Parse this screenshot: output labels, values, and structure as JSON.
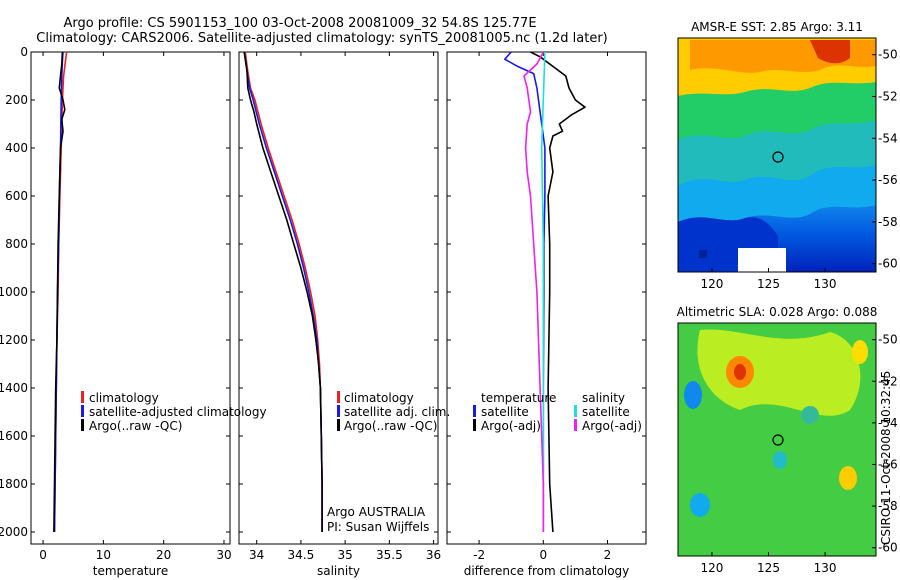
{
  "header": {
    "line1": "Argo profile: CS 5901153_100 03-Oct-2008 20081009_32 54.8S 125.77E",
    "line2": "Climatology: CARS2006. Satellite-adjusted climatology: synTS_20081005.nc (1.2d later)"
  },
  "credit": "CSIRO 11-Oct-2008 10:32:45",
  "colors": {
    "climatology": "#ee2222",
    "satellite": "#1a1ae6",
    "argo": "#000000",
    "cyan": "#22dddd",
    "magenta": "#ee22ee",
    "axis": "#000000"
  },
  "chart_data": [
    {
      "type": "line",
      "xlabel": "temperature",
      "ylabel": "",
      "xlim": [
        -2,
        31
      ],
      "ylim": [
        2050,
        0
      ],
      "xticks": [
        0,
        10,
        20,
        30
      ],
      "yticks": [
        0,
        200,
        400,
        600,
        800,
        1000,
        1200,
        1400,
        1600,
        1800,
        2000
      ],
      "legend": {
        "placement": "lower-middle",
        "entries": [
          "climatology",
          "satellite-adjusted climatology",
          "Argo(..raw -QC)"
        ]
      },
      "series": [
        {
          "name": "climatology",
          "color_key": "climatology",
          "points": [
            [
              3.9,
              0
            ],
            [
              3.7,
              40
            ],
            [
              3.4,
              100
            ],
            [
              3.2,
              200
            ],
            [
              3.0,
              400
            ],
            [
              2.8,
              600
            ],
            [
              2.6,
              800
            ],
            [
              2.5,
              1000
            ],
            [
              2.3,
              1200
            ],
            [
              2.2,
              1400
            ],
            [
              2.1,
              1600
            ],
            [
              2.0,
              1800
            ],
            [
              1.9,
              2000
            ]
          ]
        },
        {
          "name": "satellite-adjusted climatology",
          "color_key": "satellite",
          "points": [
            [
              3.3,
              0
            ],
            [
              3.2,
              40
            ],
            [
              3.1,
              100
            ],
            [
              3.0,
              200
            ],
            [
              2.9,
              400
            ],
            [
              2.7,
              600
            ],
            [
              2.6,
              800
            ],
            [
              2.4,
              1000
            ],
            [
              2.3,
              1200
            ],
            [
              2.2,
              1400
            ],
            [
              2.1,
              1600
            ],
            [
              2.0,
              1800
            ],
            [
              1.9,
              2000
            ]
          ]
        },
        {
          "name": "Argo(..raw -QC)",
          "color_key": "argo",
          "points": [
            [
              3.2,
              0
            ],
            [
              3.1,
              50
            ],
            [
              2.9,
              100
            ],
            [
              2.7,
              150
            ],
            [
              3.3,
              200
            ],
            [
              3.6,
              240
            ],
            [
              3.1,
              280
            ],
            [
              3.3,
              330
            ],
            [
              2.9,
              400
            ],
            [
              2.7,
              600
            ],
            [
              2.5,
              800
            ],
            [
              2.4,
              1000
            ],
            [
              2.3,
              1200
            ],
            [
              2.1,
              1400
            ],
            [
              2.0,
              1600
            ],
            [
              1.9,
              1800
            ],
            [
              1.8,
              2000
            ]
          ]
        }
      ]
    },
    {
      "type": "line",
      "xlabel": "salinity",
      "ylabel": "",
      "xlim": [
        33.8,
        36.05
      ],
      "ylim": [
        2050,
        0
      ],
      "xticks": [
        34,
        34.5,
        35,
        35.5,
        36
      ],
      "xticklabels": [
        "34",
        "34.5",
        "35",
        "35.5",
        "36"
      ],
      "legend": {
        "placement": "lower-right",
        "entries": [
          "climatology",
          "satellite adj. clim.",
          "Argo(..raw -QC)"
        ]
      },
      "annotation": [
        "Argo AUSTRALIA",
        "PI: Susan Wijffels"
      ],
      "series": [
        {
          "name": "climatology",
          "color_key": "climatology",
          "points": [
            [
              33.87,
              0
            ],
            [
              33.9,
              80
            ],
            [
              33.93,
              150
            ],
            [
              33.98,
              200
            ],
            [
              34.05,
              300
            ],
            [
              34.13,
              400
            ],
            [
              34.22,
              500
            ],
            [
              34.31,
              600
            ],
            [
              34.4,
              700
            ],
            [
              34.48,
              800
            ],
            [
              34.55,
              900
            ],
            [
              34.61,
              1000
            ],
            [
              34.66,
              1100
            ],
            [
              34.69,
              1200
            ],
            [
              34.71,
              1300
            ],
            [
              34.72,
              1400
            ],
            [
              34.73,
              1600
            ],
            [
              34.74,
              1800
            ],
            [
              34.74,
              2000
            ]
          ]
        },
        {
          "name": "satellite adj. clim.",
          "color_key": "satellite",
          "points": [
            [
              33.86,
              0
            ],
            [
              33.89,
              80
            ],
            [
              33.92,
              150
            ],
            [
              33.96,
              200
            ],
            [
              34.03,
              300
            ],
            [
              34.11,
              400
            ],
            [
              34.2,
              500
            ],
            [
              34.29,
              600
            ],
            [
              34.38,
              700
            ],
            [
              34.46,
              800
            ],
            [
              34.53,
              900
            ],
            [
              34.59,
              1000
            ],
            [
              34.64,
              1100
            ],
            [
              34.68,
              1200
            ],
            [
              34.7,
              1300
            ],
            [
              34.72,
              1400
            ],
            [
              34.73,
              1600
            ],
            [
              34.74,
              1800
            ],
            [
              34.74,
              2000
            ]
          ]
        },
        {
          "name": "Argo(..raw -QC)",
          "color_key": "argo",
          "points": [
            [
              33.86,
              0
            ],
            [
              33.89,
              80
            ],
            [
              33.9,
              150
            ],
            [
              33.93,
              200
            ],
            [
              33.97,
              250
            ],
            [
              34.0,
              300
            ],
            [
              34.07,
              400
            ],
            [
              34.16,
              500
            ],
            [
              34.25,
              600
            ],
            [
              34.34,
              700
            ],
            [
              34.42,
              800
            ],
            [
              34.5,
              900
            ],
            [
              34.57,
              1000
            ],
            [
              34.63,
              1100
            ],
            [
              34.67,
              1200
            ],
            [
              34.7,
              1300
            ],
            [
              34.72,
              1400
            ],
            [
              34.73,
              1600
            ],
            [
              34.74,
              1800
            ],
            [
              34.74,
              2000
            ]
          ]
        }
      ]
    },
    {
      "type": "line",
      "xlabel": "difference from climatology",
      "ylabel": "",
      "xlim": [
        -3,
        3.2
      ],
      "ylim": [
        2050,
        0
      ],
      "xticks": [
        -2,
        0,
        2
      ],
      "legend": {
        "placement": "lower-middle",
        "temperature_header": "temperature",
        "salinity_header": "salinity",
        "temperature_entries": [
          "satellite",
          "Argo(-adj)"
        ],
        "salinity_entries": [
          "satellite",
          "Argo(-adj)"
        ]
      },
      "series": [
        {
          "name": "temperature satellite",
          "color_key": "satellite",
          "points": [
            [
              -1.0,
              0
            ],
            [
              -1.2,
              30
            ],
            [
              -0.8,
              60
            ],
            [
              -0.3,
              90
            ],
            [
              -0.2,
              150
            ],
            [
              -0.1,
              250
            ],
            [
              0.05,
              400
            ],
            [
              0.05,
              600
            ],
            [
              0.02,
              800
            ],
            [
              0.02,
              1000
            ],
            [
              0.0,
              1400
            ],
            [
              0.0,
              2000
            ]
          ]
        },
        {
          "name": "temperature Argo(-adj)",
          "color_key": "argo",
          "points": [
            [
              -0.4,
              0
            ],
            [
              -0.1,
              20
            ],
            [
              0.3,
              60
            ],
            [
              0.7,
              100
            ],
            [
              0.8,
              150
            ],
            [
              1.0,
              200
            ],
            [
              1.3,
              230
            ],
            [
              0.9,
              260
            ],
            [
              0.5,
              300
            ],
            [
              0.6,
              330
            ],
            [
              0.3,
              350
            ],
            [
              0.2,
              400
            ],
            [
              0.3,
              500
            ],
            [
              0.15,
              600
            ],
            [
              0.2,
              800
            ],
            [
              0.2,
              1000
            ],
            [
              0.15,
              1400
            ],
            [
              0.2,
              1800
            ],
            [
              0.3,
              2000
            ]
          ]
        },
        {
          "name": "salinity satellite",
          "color_key": "cyan",
          "points": [
            [
              0.05,
              0
            ],
            [
              0.0,
              200
            ],
            [
              -0.05,
              400
            ],
            [
              0.0,
              800
            ],
            [
              0.0,
              1400
            ],
            [
              0.0,
              2000
            ]
          ]
        },
        {
          "name": "salinity Argo(-adj)",
          "color_key": "magenta",
          "points": [
            [
              0.0,
              0
            ],
            [
              -0.2,
              50
            ],
            [
              -0.6,
              100
            ],
            [
              -0.5,
              150
            ],
            [
              -0.4,
              250
            ],
            [
              -0.5,
              300
            ],
            [
              -0.55,
              400
            ],
            [
              -0.5,
              500
            ],
            [
              -0.4,
              600
            ],
            [
              -0.3,
              800
            ],
            [
              -0.2,
              1000
            ],
            [
              -0.1,
              1400
            ],
            [
              0.0,
              1800
            ],
            [
              0.0,
              2000
            ]
          ]
        }
      ]
    },
    {
      "type": "heatmap",
      "title": "AMSR-E SST: 2.85 Argo: 3.11",
      "xlim": [
        117,
        134.5
      ],
      "ylim": [
        -60.4,
        -49.2
      ],
      "xticks": [
        120,
        125,
        130
      ],
      "yticks": [
        -50,
        -52,
        -54,
        -56,
        -58,
        -60
      ],
      "marker": [
        125.8,
        -54.8
      ]
    },
    {
      "type": "heatmap",
      "title": "Altimetric SLA: 0.028 Argo: 0.088",
      "xlim": [
        117,
        134.5
      ],
      "ylim": [
        -60.4,
        -49.2
      ],
      "xticks": [
        120,
        125,
        130
      ],
      "yticks": [
        -50,
        -52,
        -54,
        -56,
        -58,
        -60
      ],
      "marker": [
        125.8,
        -54.8
      ]
    }
  ]
}
